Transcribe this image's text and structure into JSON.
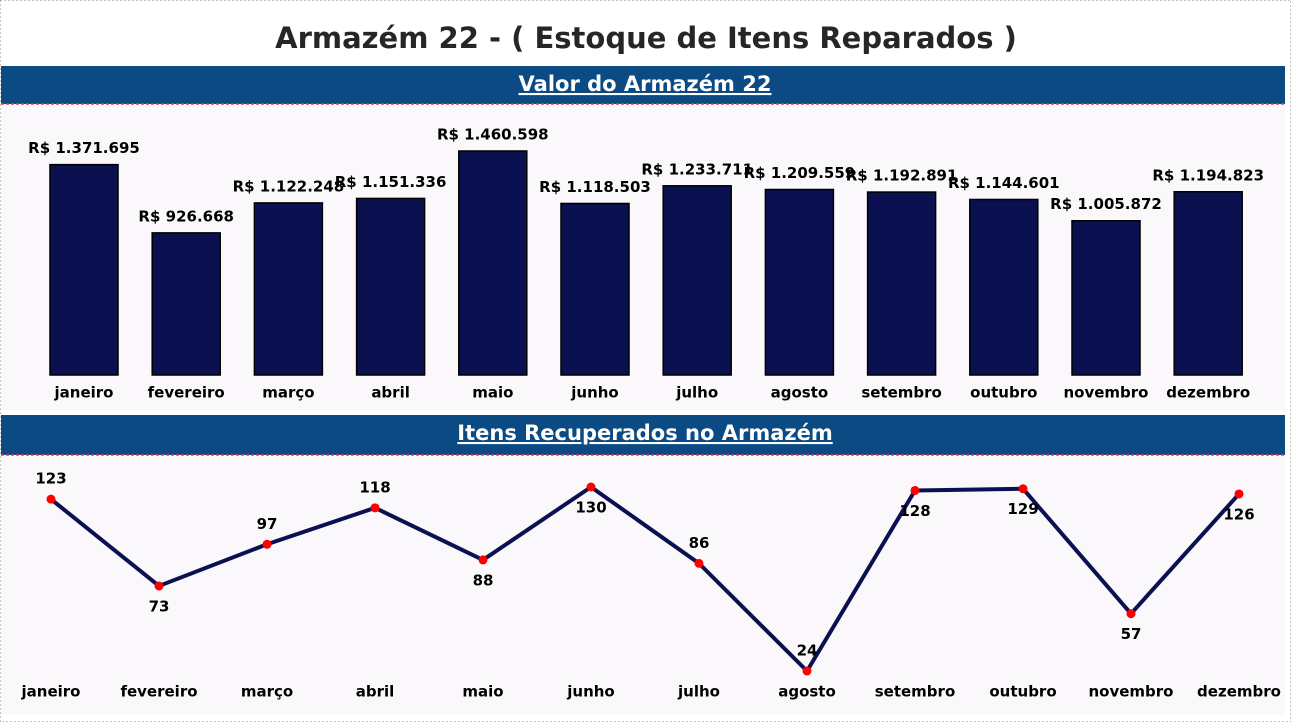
{
  "title": "Armazém 22 - ( Estoque de Itens Reparados )",
  "chart_data": [
    {
      "type": "bar",
      "title": "Valor do Armazém 22",
      "categories": [
        "janeiro",
        "fevereiro",
        "março",
        "abril",
        "maio",
        "junho",
        "julho",
        "agosto",
        "setembro",
        "outubro",
        "novembro",
        "dezembro"
      ],
      "values": [
        1371695,
        926668,
        1122248,
        1151336,
        1460598,
        1118503,
        1233711,
        1209559,
        1192891,
        1144601,
        1005872,
        1194823
      ],
      "value_labels": [
        "R$ 1.371.695",
        "R$ 926.668",
        "R$ 1.122.248",
        "R$ 1.151.336",
        "R$ 1.460.598",
        "R$ 1.118.503",
        "R$ 1.233.711",
        "R$ 1.209.559",
        "R$ 1.192.891",
        "R$ 1.144.601",
        "R$ 1.005.872",
        "R$ 1.194.823"
      ],
      "color": "#0b1150"
    },
    {
      "type": "line",
      "title": "Itens Recuperados no Armazém",
      "categories": [
        "janeiro",
        "fevereiro",
        "março",
        "abril",
        "maio",
        "junho",
        "julho",
        "agosto",
        "setembro",
        "outubro",
        "novembro",
        "dezembro"
      ],
      "values": [
        123,
        73,
        97,
        118,
        88,
        130,
        86,
        24,
        128,
        129,
        57,
        126
      ],
      "color": "#0b1150",
      "marker_color": "#ff0000"
    }
  ]
}
